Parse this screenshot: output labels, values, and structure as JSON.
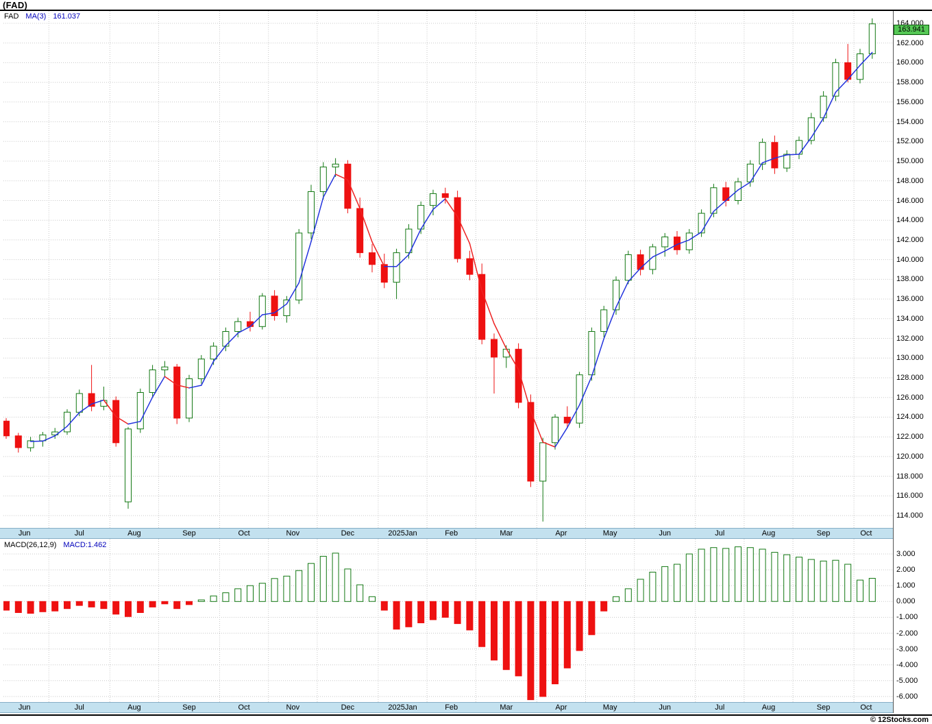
{
  "title": "(FAD)",
  "copyright": "© 12Stocks.com",
  "main_chart": {
    "legend": {
      "symbol": "FAD",
      "ma_label": "MA(3)",
      "ma_value": "161.037"
    },
    "last_price_badge": "163.941",
    "y_tick_labels": [
      "164.000",
      "162.000",
      "160.000",
      "158.000",
      "156.000",
      "154.000",
      "152.000",
      "150.000",
      "148.000",
      "146.000",
      "144.000",
      "142.000",
      "140.000",
      "138.000",
      "136.000",
      "134.000",
      "132.000",
      "130.000",
      "128.000",
      "126.000",
      "124.000",
      "122.000",
      "120.000",
      "118.000",
      "116.000",
      "114.000"
    ]
  },
  "macd_chart": {
    "legend_label": "MACD(26,12,9)",
    "legend_value": "MACD:1.462",
    "y_tick_labels": [
      "3.000",
      "2.000",
      "1.000",
      "0.000",
      "-1.000",
      "-2.000",
      "-3.000",
      "-4.000",
      "-5.000",
      "-6.000"
    ]
  },
  "colors": {
    "up": "#117711",
    "down": "#ee1111",
    "ma_up": "#2233dd",
    "ma_down": "#ee2222",
    "grid": "#c8c8c8",
    "strip_bg": "#c3e1ef",
    "strip_border": "#86aec6",
    "legend_blue": "#0000bb",
    "price_box_bg": "#55c855",
    "price_box_border": "#0a520a"
  },
  "chart_data": {
    "type": "candlestick_with_macd",
    "title": "(FAD)",
    "months": [
      {
        "label": "Jun",
        "start": 0
      },
      {
        "label": "Jul",
        "start": 4
      },
      {
        "label": "Aug",
        "start": 9
      },
      {
        "label": "Sep",
        "start": 13
      },
      {
        "label": "Oct",
        "start": 18
      },
      {
        "label": "Nov",
        "start": 22
      },
      {
        "label": "Dec",
        "start": 26
      },
      {
        "label": "2025Jan",
        "start": 31
      },
      {
        "label": "Feb",
        "start": 35
      },
      {
        "label": "Mar",
        "start": 39
      },
      {
        "label": "Apr",
        "start": 44
      },
      {
        "label": "May",
        "start": 48
      },
      {
        "label": "Jun",
        "start": 52
      },
      {
        "label": "Jul",
        "start": 57
      },
      {
        "label": "Aug",
        "start": 61
      },
      {
        "label": "Sep",
        "start": 65
      },
      {
        "label": "Oct",
        "start": 70
      }
    ],
    "price": {
      "ylim": [
        112.75,
        165.25
      ],
      "tick_step": 2,
      "ma_window": 3,
      "ma_current": 161.037,
      "last_close": 163.941,
      "ohlc": [
        [
          123.6,
          123.9,
          121.8,
          122.1
        ],
        [
          122.1,
          122.4,
          120.4,
          120.9
        ],
        [
          120.9,
          122.0,
          120.5,
          121.6
        ],
        [
          121.6,
          122.5,
          121.0,
          122.2
        ],
        [
          122.2,
          122.9,
          121.8,
          122.5
        ],
        [
          122.5,
          124.8,
          122.2,
          124.5
        ],
        [
          124.5,
          126.8,
          124.1,
          126.4
        ],
        [
          126.4,
          129.3,
          124.6,
          125.1
        ],
        [
          125.1,
          127.1,
          124.7,
          125.7
        ],
        [
          125.7,
          126.1,
          121.0,
          121.4
        ],
        [
          115.4,
          123.0,
          114.7,
          122.8
        ],
        [
          122.8,
          126.9,
          122.4,
          126.5
        ],
        [
          126.5,
          129.3,
          126.1,
          128.8
        ],
        [
          128.8,
          129.7,
          128.1,
          129.1
        ],
        [
          129.1,
          129.4,
          123.3,
          123.9
        ],
        [
          123.9,
          128.3,
          123.5,
          127.9
        ],
        [
          127.9,
          130.3,
          127.4,
          129.9
        ],
        [
          129.9,
          131.6,
          129.3,
          131.2
        ],
        [
          131.2,
          133.1,
          130.7,
          132.7
        ],
        [
          132.7,
          134.1,
          132.1,
          133.7
        ],
        [
          133.7,
          134.7,
          132.7,
          133.2
        ],
        [
          133.2,
          136.6,
          132.9,
          136.3
        ],
        [
          136.3,
          136.9,
          133.8,
          134.3
        ],
        [
          134.3,
          136.3,
          133.6,
          135.9
        ],
        [
          135.9,
          143.1,
          135.5,
          142.7
        ],
        [
          142.7,
          147.6,
          142.1,
          146.9
        ],
        [
          146.9,
          149.9,
          146.1,
          149.4
        ],
        [
          149.4,
          150.3,
          148.4,
          149.7
        ],
        [
          149.7,
          150.1,
          144.7,
          145.2
        ],
        [
          145.2,
          146.3,
          140.2,
          140.7
        ],
        [
          140.7,
          141.6,
          138.7,
          139.5
        ],
        [
          139.5,
          140.6,
          137.1,
          137.7
        ],
        [
          137.7,
          141.1,
          136.0,
          140.7
        ],
        [
          140.7,
          143.6,
          140.1,
          143.1
        ],
        [
          143.1,
          145.9,
          142.6,
          145.5
        ],
        [
          145.5,
          147.1,
          144.5,
          146.7
        ],
        [
          146.7,
          147.3,
          145.7,
          146.3
        ],
        [
          146.3,
          147.0,
          139.7,
          140.1
        ],
        [
          140.1,
          140.9,
          137.9,
          138.5
        ],
        [
          138.5,
          139.6,
          131.4,
          131.9
        ],
        [
          131.9,
          132.5,
          126.4,
          130.1
        ],
        [
          130.1,
          131.3,
          129.0,
          130.9
        ],
        [
          130.9,
          131.5,
          124.9,
          125.5
        ],
        [
          125.5,
          126.3,
          116.9,
          117.5
        ],
        [
          117.5,
          121.9,
          113.4,
          121.4
        ],
        [
          121.4,
          124.3,
          120.7,
          124.0
        ],
        [
          124.0,
          125.1,
          122.9,
          123.4
        ],
        [
          123.4,
          128.6,
          122.9,
          128.3
        ],
        [
          128.3,
          133.1,
          127.7,
          132.7
        ],
        [
          132.7,
          135.3,
          132.1,
          134.9
        ],
        [
          134.9,
          138.3,
          134.4,
          137.9
        ],
        [
          137.9,
          140.9,
          137.5,
          140.5
        ],
        [
          140.5,
          141.0,
          138.4,
          139.0
        ],
        [
          139.0,
          141.6,
          138.5,
          141.3
        ],
        [
          141.3,
          142.7,
          140.3,
          142.3
        ],
        [
          142.3,
          142.9,
          140.5,
          141.0
        ],
        [
          141.0,
          143.1,
          140.6,
          142.7
        ],
        [
          142.7,
          145.1,
          142.3,
          144.7
        ],
        [
          144.7,
          147.7,
          144.3,
          147.3
        ],
        [
          147.3,
          147.9,
          145.4,
          146.0
        ],
        [
          146.0,
          148.3,
          145.6,
          147.9
        ],
        [
          147.9,
          150.1,
          147.4,
          149.7
        ],
        [
          149.7,
          152.3,
          149.1,
          151.9
        ],
        [
          151.9,
          152.6,
          148.7,
          149.3
        ],
        [
          149.3,
          151.1,
          148.9,
          150.7
        ],
        [
          150.7,
          152.5,
          150.2,
          152.1
        ],
        [
          152.1,
          154.9,
          151.7,
          154.4
        ],
        [
          154.4,
          157.1,
          154.0,
          156.6
        ],
        [
          156.6,
          160.4,
          156.1,
          160.0
        ],
        [
          160.0,
          161.9,
          158.0,
          158.3
        ],
        [
          158.3,
          161.4,
          157.9,
          160.9
        ],
        [
          160.9,
          164.5,
          160.4,
          163.941
        ]
      ]
    },
    "macd": {
      "ylim": [
        -6.35,
        3.95
      ],
      "tick_step": 1,
      "current": 1.462,
      "values": [
        -0.55,
        -0.7,
        -0.75,
        -0.65,
        -0.6,
        -0.45,
        -0.25,
        -0.35,
        -0.45,
        -0.8,
        -0.95,
        -0.7,
        -0.35,
        -0.15,
        -0.45,
        -0.2,
        0.1,
        0.35,
        0.55,
        0.8,
        1.0,
        1.15,
        1.45,
        1.6,
        1.95,
        2.4,
        2.85,
        3.05,
        2.05,
        1.05,
        0.3,
        -0.55,
        -1.75,
        -1.6,
        -1.35,
        -1.15,
        -1.0,
        -1.4,
        -1.8,
        -2.85,
        -3.7,
        -4.3,
        -4.7,
        -6.2,
        -6.0,
        -5.2,
        -4.2,
        -3.1,
        -2.1,
        -0.6,
        0.3,
        0.8,
        1.4,
        1.85,
        2.2,
        2.35,
        3.0,
        3.3,
        3.4,
        3.35,
        3.45,
        3.4,
        3.3,
        3.1,
        2.95,
        2.8,
        2.65,
        2.55,
        2.6,
        2.35,
        1.35,
        1.462
      ]
    }
  }
}
